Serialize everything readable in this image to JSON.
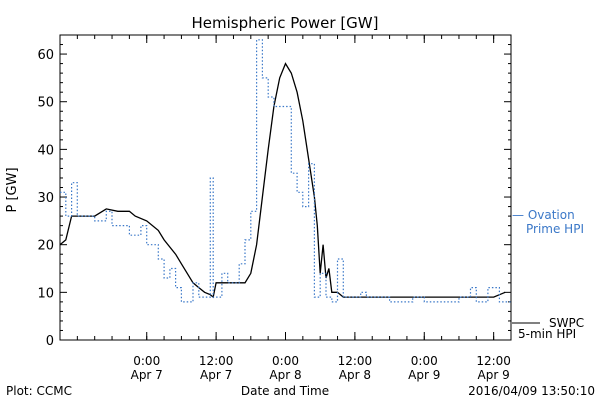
{
  "chart_data": {
    "type": "line",
    "title": "Hemispheric Power [GW]",
    "ylabel": "P [GW]",
    "xlabel": "Date and Time",
    "ylim": [
      0,
      64
    ],
    "xlim": [
      "2016-04-06T09:00",
      "2016-04-09T15:00"
    ],
    "yticks": [
      0,
      10,
      20,
      30,
      40,
      50,
      60
    ],
    "xticks": [
      {
        "t": "2016-04-07T00:00",
        "line1": "0:00",
        "line2": "Apr 7"
      },
      {
        "t": "2016-04-07T12:00",
        "line1": "12:00",
        "line2": "Apr 7"
      },
      {
        "t": "2016-04-08T00:00",
        "line1": "0:00",
        "line2": "Apr 8"
      },
      {
        "t": "2016-04-08T12:00",
        "line1": "12:00",
        "line2": "Apr 8"
      },
      {
        "t": "2016-04-09T00:00",
        "line1": "0:00",
        "line2": "Apr 9"
      },
      {
        "t": "2016-04-09T12:00",
        "line1": "12:00",
        "line2": "Apr 9"
      }
    ],
    "grid": false,
    "series": [
      {
        "name": "SWPC 5-min HPI",
        "color": "#000000",
        "style": "solid",
        "points": [
          [
            "2016-04-06T09:00",
            20
          ],
          [
            "2016-04-06T10:00",
            21
          ],
          [
            "2016-04-06T11:00",
            26
          ],
          [
            "2016-04-06T13:00",
            26
          ],
          [
            "2016-04-06T15:00",
            26
          ],
          [
            "2016-04-06T17:00",
            27.5
          ],
          [
            "2016-04-06T19:00",
            27
          ],
          [
            "2016-04-06T21:00",
            27
          ],
          [
            "2016-04-06T22:00",
            26
          ],
          [
            "2016-04-07T00:00",
            25
          ],
          [
            "2016-04-07T02:00",
            23
          ],
          [
            "2016-04-07T03:00",
            21
          ],
          [
            "2016-04-07T05:00",
            18
          ],
          [
            "2016-04-07T06:00",
            16
          ],
          [
            "2016-04-07T07:00",
            14
          ],
          [
            "2016-04-07T08:00",
            12
          ],
          [
            "2016-04-07T09:00",
            11
          ],
          [
            "2016-04-07T10:00",
            10
          ],
          [
            "2016-04-07T11:00",
            9.5
          ],
          [
            "2016-04-07T11:30",
            9
          ],
          [
            "2016-04-07T12:00",
            12
          ],
          [
            "2016-04-07T13:00",
            12
          ],
          [
            "2016-04-07T14:00",
            12
          ],
          [
            "2016-04-07T15:00",
            12
          ],
          [
            "2016-04-07T16:00",
            12
          ],
          [
            "2016-04-07T17:00",
            12
          ],
          [
            "2016-04-07T18:00",
            14
          ],
          [
            "2016-04-07T19:00",
            20
          ],
          [
            "2016-04-07T20:00",
            30
          ],
          [
            "2016-04-07T21:00",
            40
          ],
          [
            "2016-04-07T22:00",
            49
          ],
          [
            "2016-04-07T23:00",
            55
          ],
          [
            "2016-04-08T00:00",
            58
          ],
          [
            "2016-04-08T01:00",
            56
          ],
          [
            "2016-04-08T02:00",
            52
          ],
          [
            "2016-04-08T03:00",
            46
          ],
          [
            "2016-04-08T04:00",
            38
          ],
          [
            "2016-04-08T05:00",
            30
          ],
          [
            "2016-04-08T05:30",
            24
          ],
          [
            "2016-04-08T06:00",
            14
          ],
          [
            "2016-04-08T06:30",
            20
          ],
          [
            "2016-04-08T07:00",
            13
          ],
          [
            "2016-04-08T07:30",
            15
          ],
          [
            "2016-04-08T08:00",
            10
          ],
          [
            "2016-04-08T09:00",
            10
          ],
          [
            "2016-04-08T10:00",
            9
          ],
          [
            "2016-04-08T12:00",
            9
          ],
          [
            "2016-04-08T15:00",
            9
          ],
          [
            "2016-04-08T18:00",
            9
          ],
          [
            "2016-04-08T21:00",
            9
          ],
          [
            "2016-04-08T23:00",
            9
          ],
          [
            "2016-04-09T00:00",
            9
          ],
          [
            "2016-04-09T03:00",
            9
          ],
          [
            "2016-04-09T06:00",
            9
          ],
          [
            "2016-04-09T09:00",
            9
          ],
          [
            "2016-04-09T12:00",
            9
          ],
          [
            "2016-04-09T14:00",
            10
          ]
        ]
      },
      {
        "name": "Ovation Prime HPI",
        "color": "#3b78c8",
        "style": "dotted",
        "points": [
          [
            "2016-04-06T09:00",
            31
          ],
          [
            "2016-04-06T10:00",
            31
          ],
          [
            "2016-04-06T10:00",
            26
          ],
          [
            "2016-04-06T11:00",
            26
          ],
          [
            "2016-04-06T11:00",
            33
          ],
          [
            "2016-04-06T12:00",
            33
          ],
          [
            "2016-04-06T12:00",
            26
          ],
          [
            "2016-04-06T15:00",
            26
          ],
          [
            "2016-04-06T15:00",
            25
          ],
          [
            "2016-04-06T17:00",
            25
          ],
          [
            "2016-04-06T17:00",
            27
          ],
          [
            "2016-04-06T18:00",
            27
          ],
          [
            "2016-04-06T18:00",
            24
          ],
          [
            "2016-04-06T21:00",
            24
          ],
          [
            "2016-04-06T21:00",
            22
          ],
          [
            "2016-04-06T23:00",
            22
          ],
          [
            "2016-04-06T23:00",
            24
          ],
          [
            "2016-04-07T00:00",
            24
          ],
          [
            "2016-04-07T00:00",
            20
          ],
          [
            "2016-04-07T02:00",
            20
          ],
          [
            "2016-04-07T02:00",
            17
          ],
          [
            "2016-04-07T03:00",
            17
          ],
          [
            "2016-04-07T03:00",
            13
          ],
          [
            "2016-04-07T04:00",
            13
          ],
          [
            "2016-04-07T04:00",
            15
          ],
          [
            "2016-04-07T05:00",
            15
          ],
          [
            "2016-04-07T05:00",
            11
          ],
          [
            "2016-04-07T06:00",
            11
          ],
          [
            "2016-04-07T06:00",
            8
          ],
          [
            "2016-04-07T08:00",
            8
          ],
          [
            "2016-04-07T08:00",
            12
          ],
          [
            "2016-04-07T09:00",
            12
          ],
          [
            "2016-04-07T09:00",
            9
          ],
          [
            "2016-04-07T11:00",
            9
          ],
          [
            "2016-04-07T11:00",
            34
          ],
          [
            "2016-04-07T11:30",
            34
          ],
          [
            "2016-04-07T11:30",
            9
          ],
          [
            "2016-04-07T13:00",
            9
          ],
          [
            "2016-04-07T13:00",
            14
          ],
          [
            "2016-04-07T14:00",
            14
          ],
          [
            "2016-04-07T14:00",
            12
          ],
          [
            "2016-04-07T16:00",
            12
          ],
          [
            "2016-04-07T16:00",
            16
          ],
          [
            "2016-04-07T17:00",
            16
          ],
          [
            "2016-04-07T17:00",
            21
          ],
          [
            "2016-04-07T18:00",
            21
          ],
          [
            "2016-04-07T18:00",
            27
          ],
          [
            "2016-04-07T19:00",
            27
          ],
          [
            "2016-04-07T19:00",
            63
          ],
          [
            "2016-04-07T20:00",
            63
          ],
          [
            "2016-04-07T20:00",
            55
          ],
          [
            "2016-04-07T21:00",
            55
          ],
          [
            "2016-04-07T21:00",
            51
          ],
          [
            "2016-04-07T22:00",
            51
          ],
          [
            "2016-04-07T22:00",
            49
          ],
          [
            "2016-04-08T01:00",
            49
          ],
          [
            "2016-04-08T01:00",
            35
          ],
          [
            "2016-04-08T02:00",
            35
          ],
          [
            "2016-04-08T02:00",
            31
          ],
          [
            "2016-04-08T03:00",
            31
          ],
          [
            "2016-04-08T03:00",
            28
          ],
          [
            "2016-04-08T04:00",
            28
          ],
          [
            "2016-04-08T04:00",
            37
          ],
          [
            "2016-04-08T05:00",
            37
          ],
          [
            "2016-04-08T05:00",
            9
          ],
          [
            "2016-04-08T06:00",
            9
          ],
          [
            "2016-04-08T06:00",
            14
          ],
          [
            "2016-04-08T07:00",
            14
          ],
          [
            "2016-04-08T07:00",
            9
          ],
          [
            "2016-04-08T08:00",
            9
          ],
          [
            "2016-04-08T08:00",
            8
          ],
          [
            "2016-04-08T09:00",
            8
          ],
          [
            "2016-04-08T09:00",
            17
          ],
          [
            "2016-04-08T10:00",
            17
          ],
          [
            "2016-04-08T10:00",
            9
          ],
          [
            "2016-04-08T13:00",
            9
          ],
          [
            "2016-04-08T13:00",
            10
          ],
          [
            "2016-04-08T14:00",
            10
          ],
          [
            "2016-04-08T14:00",
            9
          ],
          [
            "2016-04-08T18:00",
            9
          ],
          [
            "2016-04-08T18:00",
            8
          ],
          [
            "2016-04-08T22:00",
            8
          ],
          [
            "2016-04-08T22:00",
            9
          ],
          [
            "2016-04-09T00:00",
            9
          ],
          [
            "2016-04-09T00:00",
            8
          ],
          [
            "2016-04-09T06:00",
            8
          ],
          [
            "2016-04-09T06:00",
            9
          ],
          [
            "2016-04-09T08:00",
            9
          ],
          [
            "2016-04-09T08:00",
            11
          ],
          [
            "2016-04-09T09:00",
            11
          ],
          [
            "2016-04-09T09:00",
            8
          ],
          [
            "2016-04-09T11:00",
            8
          ],
          [
            "2016-04-09T11:00",
            11
          ],
          [
            "2016-04-09T13:00",
            11
          ],
          [
            "2016-04-09T13:00",
            8
          ],
          [
            "2016-04-09T15:00",
            8
          ]
        ]
      }
    ],
    "legend": [
      {
        "line1": "— Ovation",
        "line2": "Prime HPI",
        "color": "#3b78c8"
      },
      {
        "line1": "SWPC",
        "line2": "5-min HPI",
        "color": "#000000"
      }
    ]
  },
  "footer": {
    "left": "Plot: CCMC",
    "center": "Date and Time",
    "right": "2016/04/09 13:50:10"
  }
}
